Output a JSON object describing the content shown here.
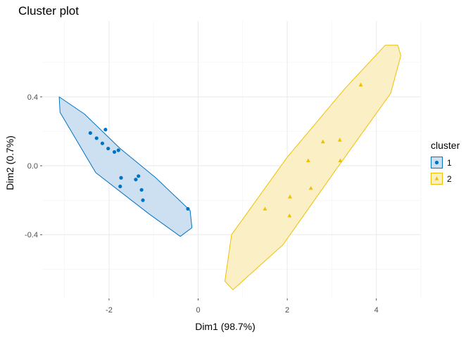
{
  "title": "Cluster plot",
  "chart_data": {
    "type": "scatter",
    "title": "Cluster plot",
    "xlabel": "Dim1 (98.7%)",
    "ylabel": "Dim2 (0.7%)",
    "xlim": [
      -3.5,
      5.0
    ],
    "ylim": [
      -0.77,
      0.84
    ],
    "x_ticks": [
      -2,
      0,
      2,
      4
    ],
    "y_ticks": [
      -0.4,
      0.0,
      0.4
    ],
    "x_tick_labels": [
      "-2",
      "0",
      "2",
      "4"
    ],
    "y_tick_labels": [
      "-0.4",
      "0.0",
      "0.4"
    ],
    "grid": true,
    "legend_title": "cluster",
    "legend_position": "right",
    "series": [
      {
        "name": "1",
        "color": "#0073C2",
        "fill": "#CCE0F2",
        "marker": "circle",
        "points": [
          [
            -2.42,
            0.19
          ],
          [
            -2.28,
            0.16
          ],
          [
            -2.15,
            0.13
          ],
          [
            -2.08,
            0.21
          ],
          [
            -2.02,
            0.1
          ],
          [
            -1.88,
            0.08
          ],
          [
            -1.79,
            0.09
          ],
          [
            -1.73,
            -0.07
          ],
          [
            -1.75,
            -0.12
          ],
          [
            -1.4,
            -0.08
          ],
          [
            -1.34,
            -0.06
          ],
          [
            -1.27,
            -0.14
          ],
          [
            -1.24,
            -0.2
          ],
          [
            -0.23,
            -0.25
          ]
        ],
        "hull": [
          [
            -3.12,
            0.4
          ],
          [
            -2.55,
            0.3
          ],
          [
            -1.75,
            0.1
          ],
          [
            -0.95,
            -0.07
          ],
          [
            -0.18,
            -0.26
          ],
          [
            -0.14,
            -0.36
          ],
          [
            -0.4,
            -0.41
          ],
          [
            -1.1,
            -0.28
          ],
          [
            -2.3,
            -0.04
          ],
          [
            -3.1,
            0.31
          ]
        ]
      },
      {
        "name": "2",
        "color": "#EFC000",
        "fill": "#FBF0C5",
        "marker": "triangle",
        "points": [
          [
            1.5,
            -0.25
          ],
          [
            2.06,
            -0.18
          ],
          [
            2.05,
            -0.29
          ],
          [
            2.47,
            0.03
          ],
          [
            2.53,
            -0.13
          ],
          [
            2.8,
            0.14
          ],
          [
            3.18,
            0.15
          ],
          [
            3.19,
            0.03
          ],
          [
            3.65,
            0.47
          ]
        ],
        "hull": [
          [
            4.48,
            0.7
          ],
          [
            4.55,
            0.64
          ],
          [
            4.32,
            0.42
          ],
          [
            3.1,
            -0.02
          ],
          [
            1.9,
            -0.46
          ],
          [
            0.78,
            -0.72
          ],
          [
            0.6,
            -0.67
          ],
          [
            0.75,
            -0.4
          ],
          [
            2.0,
            0.05
          ],
          [
            3.3,
            0.45
          ],
          [
            4.2,
            0.7
          ]
        ]
      }
    ]
  }
}
